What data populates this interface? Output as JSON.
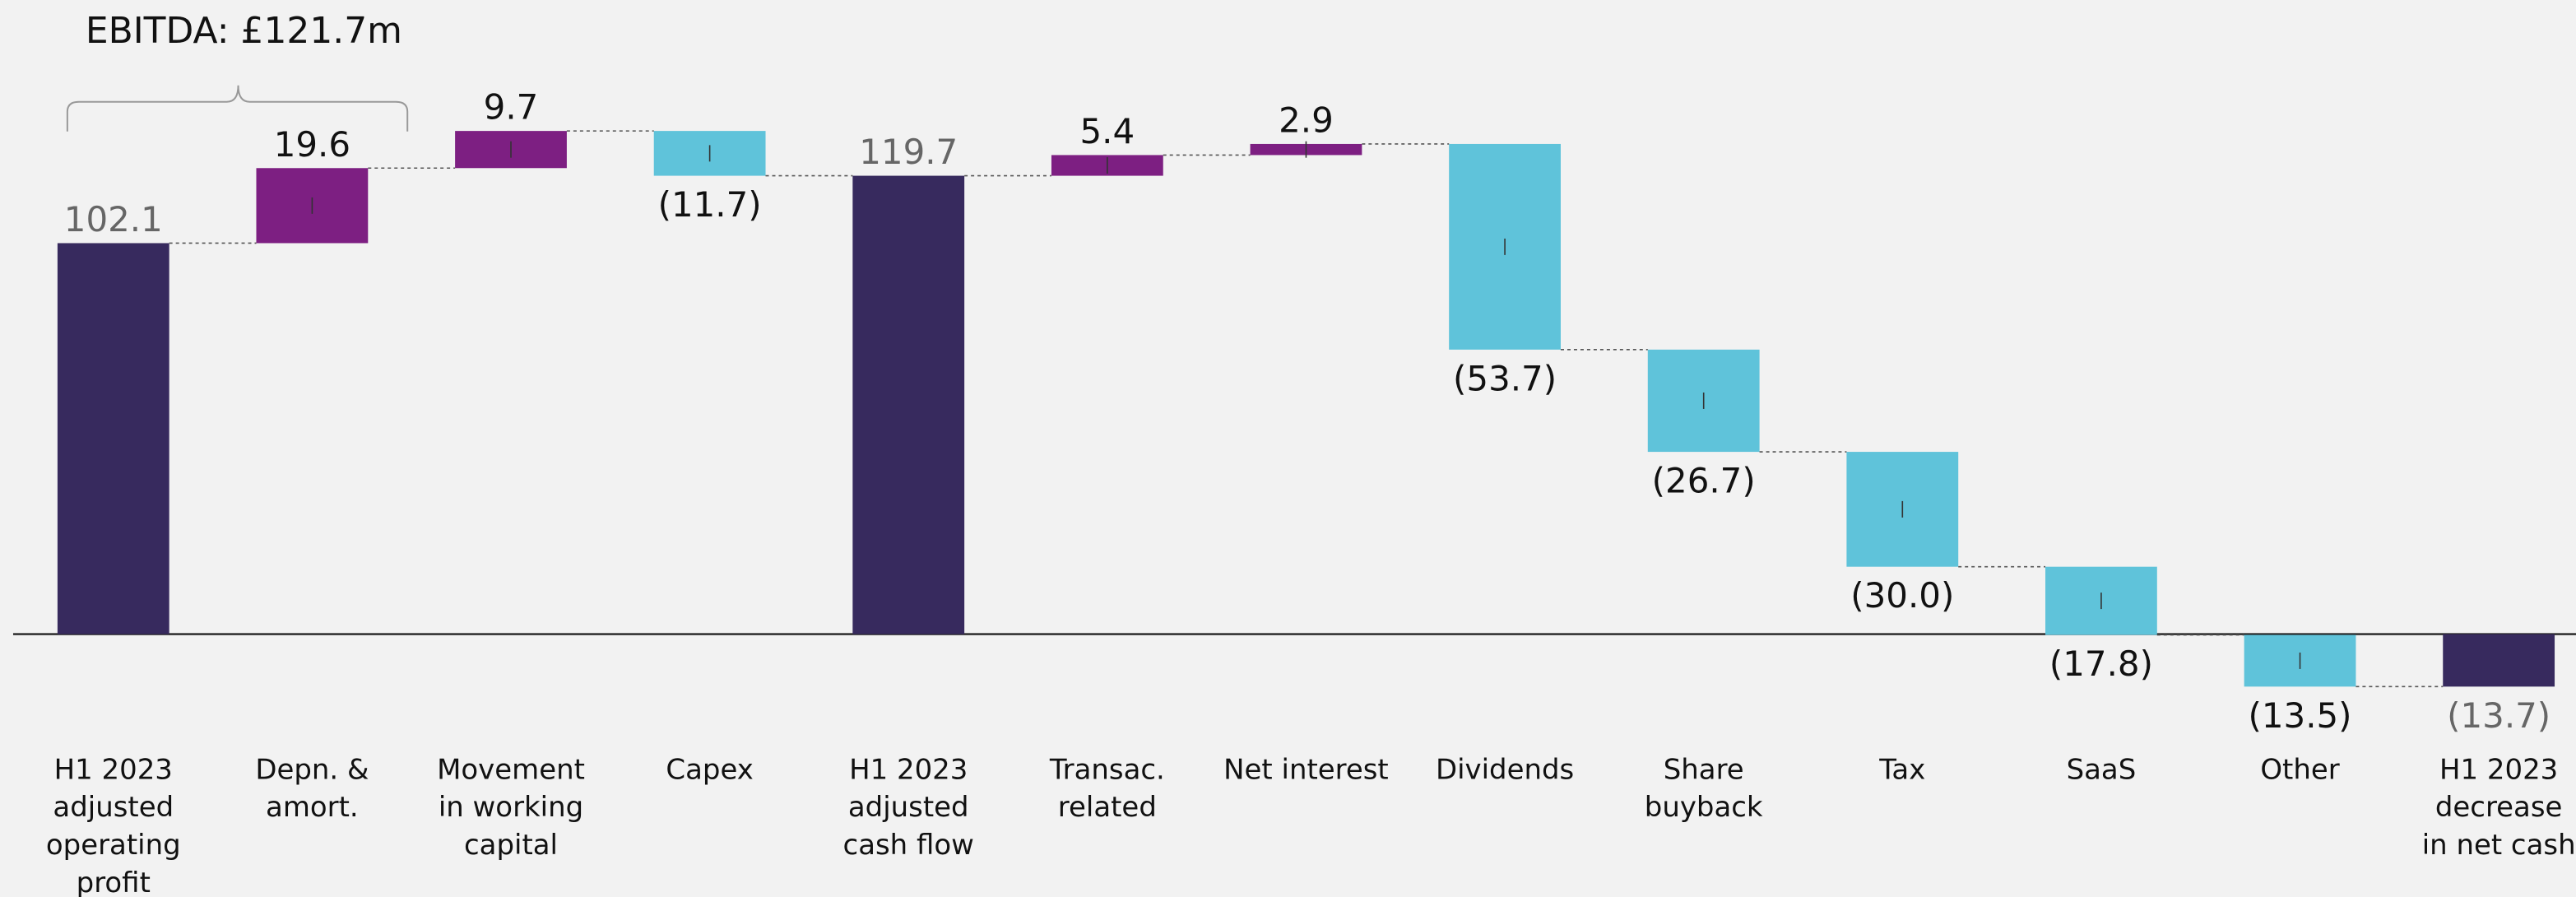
{
  "chart_data": {
    "type": "waterfall",
    "annotation": "EBITDA: £121.7m",
    "categories": [
      "H1 2023\nadjusted\noperating\nprofit",
      "Depn. &\namort.",
      "Movement\nin working\ncapital",
      "Capex",
      "H1 2023\nadjusted\ncash flow",
      "Transac.\nrelated",
      "Net interest",
      "Dividends",
      "Share\nbuyback",
      "Tax",
      "SaaS",
      "Other",
      "H1 2023\ndecrease\nin net cash"
    ],
    "values": [
      102.1,
      19.6,
      9.7,
      -11.7,
      119.7,
      5.4,
      2.9,
      -53.7,
      -26.7,
      -30.0,
      -17.8,
      -13.5,
      -13.7
    ],
    "value_labels": [
      "102.1",
      "19.6",
      "9.7",
      "(11.7)",
      "119.7",
      "5.4",
      "2.9",
      "(53.7)",
      "(26.7)",
      "(30.0)",
      "(17.8)",
      "(13.5)",
      "(13.7)"
    ],
    "measure": [
      "total",
      "relative",
      "relative",
      "relative",
      "total",
      "relative",
      "relative",
      "relative",
      "relative",
      "relative",
      "relative",
      "relative",
      "total"
    ],
    "colors": {
      "total": "#372a5e",
      "increase": "#7d1f82",
      "decrease": "#5fc3da"
    }
  }
}
